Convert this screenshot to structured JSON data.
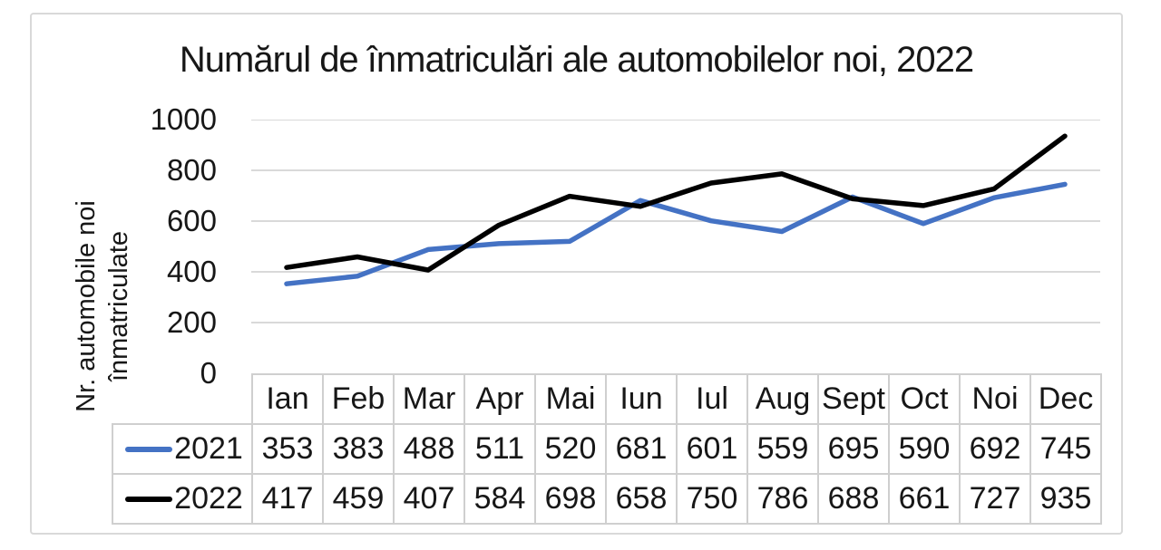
{
  "chart_data": {
    "type": "line",
    "title": "Numărul de înmatriculări ale automobilelor noi, 2022",
    "ylabel": "Nr. automobile noi înmatriculate",
    "ylabel_line1": "Nr. automobile noi",
    "ylabel_line2": "înmatriculate",
    "xlabel": "",
    "categories": [
      "Ian",
      "Feb",
      "Mar",
      "Apr",
      "Mai",
      "Iun",
      "Iul",
      "Aug",
      "Sept",
      "Oct",
      "Noi",
      "Dec"
    ],
    "series": [
      {
        "name": "2021",
        "color": "#4472C4",
        "values": [
          353,
          383,
          488,
          511,
          520,
          681,
          601,
          559,
          695,
          590,
          692,
          745
        ]
      },
      {
        "name": "2022",
        "color": "#000000",
        "values": [
          417,
          459,
          407,
          584,
          698,
          658,
          750,
          786,
          688,
          661,
          727,
          935
        ]
      }
    ],
    "ylim": [
      0,
      1000
    ],
    "yticks": [
      0,
      200,
      400,
      600,
      800,
      1000
    ],
    "grid": true,
    "gridline_color": "#D9D9D9",
    "legend_position": "table-left"
  },
  "colors": {
    "frame_border": "#d9d9d9",
    "table_border": "#cfcfcf",
    "text": "#171717"
  }
}
